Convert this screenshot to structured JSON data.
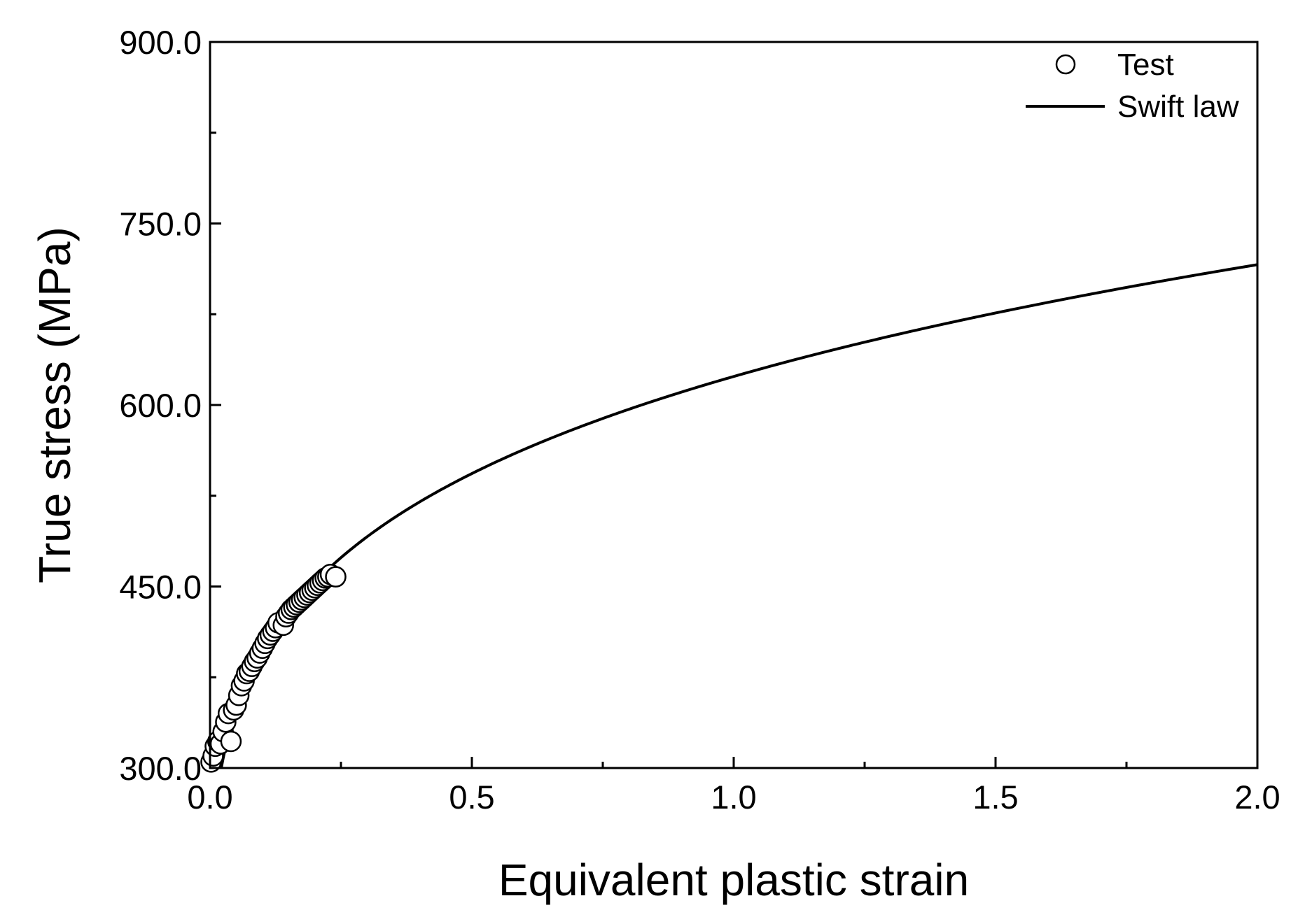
{
  "chart_data": {
    "type": "scatter",
    "xlabel": "Equivalent plastic strain",
    "ylabel": "True stress (MPa)",
    "xlim": [
      0.0,
      2.0
    ],
    "ylim": [
      300.0,
      900.0
    ],
    "x_ticks": [
      "0.0",
      "0.5",
      "1.0",
      "1.5",
      "2.0"
    ],
    "y_ticks": [
      "300.0",
      "450.0",
      "600.0",
      "750.0",
      "900.0"
    ],
    "x_tick_values": [
      0.0,
      0.5,
      1.0,
      1.5,
      2.0
    ],
    "y_tick_values": [
      300,
      450,
      600,
      750,
      900
    ],
    "x_minor_step": 0.25,
    "y_minor_step": 75,
    "grid": false,
    "legend_position": "top-right",
    "series": [
      {
        "name": "Test",
        "kind": "scatter",
        "marker": "open-circle",
        "color": "#000000",
        "x": [
          0.002,
          0.006,
          0.01,
          0.015,
          0.02,
          0.025,
          0.03,
          0.035,
          0.04,
          0.045,
          0.05,
          0.055,
          0.06,
          0.065,
          0.07,
          0.075,
          0.08,
          0.085,
          0.09,
          0.095,
          0.1,
          0.105,
          0.11,
          0.115,
          0.12,
          0.125,
          0.13,
          0.14,
          0.145,
          0.15,
          0.155,
          0.16,
          0.165,
          0.17,
          0.175,
          0.18,
          0.185,
          0.19,
          0.195,
          0.2,
          0.205,
          0.21,
          0.215,
          0.22,
          0.225,
          0.23,
          0.24
        ],
        "y": [
          305,
          310,
          318,
          322,
          320,
          330,
          338,
          345,
          322,
          348,
          352,
          360,
          368,
          372,
          378,
          380,
          384,
          388,
          391,
          395,
          399,
          403,
          407,
          410,
          413,
          416,
          420,
          418,
          425,
          428,
          431,
          433,
          435,
          437,
          439,
          441,
          443,
          445,
          447,
          449,
          451,
          453,
          455,
          457,
          458,
          460,
          458
        ]
      },
      {
        "name": "Swift law",
        "kind": "line",
        "color": "#000000",
        "K": 623,
        "e0": 0.0045,
        "n": 0.2
      }
    ]
  }
}
